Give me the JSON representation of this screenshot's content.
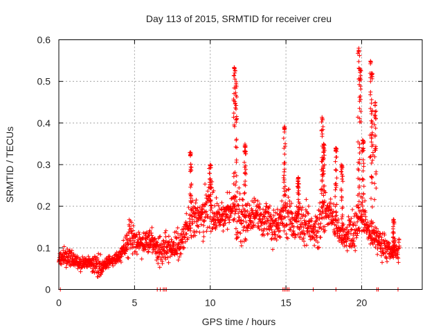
{
  "chart_data": {
    "type": "scatter",
    "title": "Day 113 of 2015, SRMTID for receiver creu",
    "xlabel": "GPS time / hours",
    "ylabel": "SRMTID / TECUs",
    "xlim": [
      0,
      24
    ],
    "ylim": [
      0,
      0.6
    ],
    "xticks": [
      0,
      5,
      10,
      15,
      20
    ],
    "yticks": [
      0,
      0.1,
      0.2,
      0.3,
      0.4,
      0.5,
      0.6
    ],
    "xtick_labels": [
      "0",
      "5",
      "10",
      "15",
      "20"
    ],
    "ytick_labels": [
      "0",
      "0.1",
      "0.2",
      "0.3",
      "0.4",
      "0.5",
      "0.6"
    ],
    "grid": true,
    "marker": "+",
    "color": "#ff0000",
    "series": [
      {
        "name": "SRMTID",
        "trend": [
          [
            0.0,
            0.07
          ],
          [
            0.5,
            0.08
          ],
          [
            1.0,
            0.07
          ],
          [
            1.5,
            0.06
          ],
          [
            2.0,
            0.065
          ],
          [
            2.5,
            0.06
          ],
          [
            3.0,
            0.06
          ],
          [
            3.5,
            0.07
          ],
          [
            4.0,
            0.08
          ],
          [
            4.5,
            0.11
          ],
          [
            5.0,
            0.12
          ],
          [
            5.5,
            0.11
          ],
          [
            6.0,
            0.12
          ],
          [
            6.5,
            0.1
          ],
          [
            7.0,
            0.1
          ],
          [
            7.5,
            0.1
          ],
          [
            8.0,
            0.11
          ],
          [
            8.5,
            0.15
          ],
          [
            9.0,
            0.17
          ],
          [
            9.5,
            0.18
          ],
          [
            10.0,
            0.2
          ],
          [
            10.5,
            0.17
          ],
          [
            11.0,
            0.18
          ],
          [
            11.5,
            0.2
          ],
          [
            12.0,
            0.18
          ],
          [
            12.5,
            0.17
          ],
          [
            13.0,
            0.18
          ],
          [
            13.5,
            0.17
          ],
          [
            14.0,
            0.17
          ],
          [
            14.5,
            0.16
          ],
          [
            15.0,
            0.18
          ],
          [
            15.5,
            0.16
          ],
          [
            16.0,
            0.17
          ],
          [
            16.5,
            0.15
          ],
          [
            17.0,
            0.14
          ],
          [
            17.5,
            0.19
          ],
          [
            18.0,
            0.18
          ],
          [
            18.5,
            0.15
          ],
          [
            19.0,
            0.12
          ],
          [
            19.5,
            0.13
          ],
          [
            20.0,
            0.18
          ],
          [
            20.5,
            0.14
          ],
          [
            21.0,
            0.12
          ],
          [
            21.5,
            0.1
          ],
          [
            22.0,
            0.09
          ],
          [
            22.5,
            0.1
          ]
        ],
        "spikes": [
          [
            8.7,
            0.33
          ],
          [
            10.0,
            0.3
          ],
          [
            11.6,
            0.54
          ],
          [
            11.7,
            0.5
          ],
          [
            12.3,
            0.35
          ],
          [
            14.9,
            0.395
          ],
          [
            15.8,
            0.27
          ],
          [
            17.4,
            0.415
          ],
          [
            17.5,
            0.35
          ],
          [
            18.3,
            0.34
          ],
          [
            18.7,
            0.3
          ],
          [
            19.8,
            0.58
          ],
          [
            19.9,
            0.53
          ],
          [
            20.1,
            0.36
          ],
          [
            20.6,
            0.55
          ],
          [
            20.7,
            0.52
          ],
          [
            20.9,
            0.45
          ],
          [
            22.1,
            0.17
          ]
        ],
        "zero_points": [
          0.1,
          6.5,
          6.7,
          6.9,
          7.0,
          7.1,
          14.8,
          14.9,
          15.0,
          15.1,
          15.2,
          16.8,
          18.3,
          21.0,
          21.1,
          22.4
        ]
      }
    ]
  }
}
